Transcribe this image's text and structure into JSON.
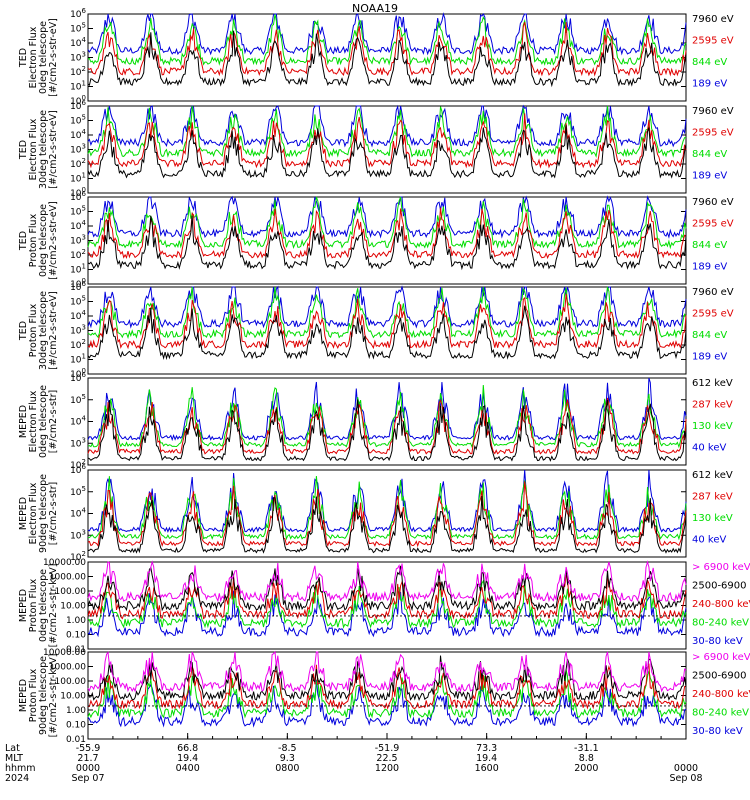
{
  "title": "NOAA19",
  "colors": {
    "black": "#000000",
    "red": "#e00000",
    "green": "#00dd00",
    "blue": "#0000dd",
    "magenta": "#ee00ee"
  },
  "chart_data": {
    "type": "line",
    "panels": [
      {
        "ylabel": [
          "TED",
          "Electron Flux",
          "0deg telescope",
          "[#/cm2-s-str-eV]"
        ],
        "yticks": [
          "10^6",
          "10^5",
          "10^4",
          "10^3",
          "10^2",
          "10^1",
          "10^0"
        ],
        "yrange": [
          0,
          6
        ],
        "legend": [
          {
            "name": "7960 eV",
            "color": "black"
          },
          {
            "name": "2595 eV",
            "color": "red"
          },
          {
            "name": "844 eV",
            "color": "green"
          },
          {
            "name": "189 eV",
            "color": "blue"
          }
        ]
      },
      {
        "ylabel": [
          "TED",
          "Electron Flux",
          "30deg telescope",
          "[#/cm2-s-str-eV]"
        ],
        "yticks": [
          "10^6",
          "10^5",
          "10^4",
          "10^3",
          "10^2",
          "10^1",
          "10^0"
        ],
        "yrange": [
          0,
          6
        ],
        "legend": [
          {
            "name": "7960 eV",
            "color": "black"
          },
          {
            "name": "2595 eV",
            "color": "red"
          },
          {
            "name": "844 eV",
            "color": "green"
          },
          {
            "name": "189 eV",
            "color": "blue"
          }
        ]
      },
      {
        "ylabel": [
          "TED",
          "Proton Flux",
          "0deg telescope",
          "[#/cm2-s-str-eV]"
        ],
        "yticks": [
          "10^6",
          "10^5",
          "10^4",
          "10^3",
          "10^2",
          "10^1",
          "10^0"
        ],
        "yrange": [
          0,
          6
        ],
        "legend": [
          {
            "name": "7960 eV",
            "color": "black"
          },
          {
            "name": "2595 eV",
            "color": "red"
          },
          {
            "name": "844 eV",
            "color": "green"
          },
          {
            "name": "189 eV",
            "color": "blue"
          }
        ]
      },
      {
        "ylabel": [
          "TED",
          "Proton Flux",
          "30deg telescope",
          "[#/cm2-s-str-eV]"
        ],
        "yticks": [
          "10^6",
          "10^5",
          "10^4",
          "10^3",
          "10^2",
          "10^1",
          "10^0"
        ],
        "yrange": [
          0,
          6
        ],
        "legend": [
          {
            "name": "7960 eV",
            "color": "black"
          },
          {
            "name": "2595 eV",
            "color": "red"
          },
          {
            "name": "844 eV",
            "color": "green"
          },
          {
            "name": "189 eV",
            "color": "blue"
          }
        ]
      },
      {
        "ylabel": [
          "MEPED",
          "Electron Flux",
          "0deg telescope",
          "[#/cm2-s-str]"
        ],
        "yticks": [
          "10^6",
          "10^5",
          "10^4",
          "10^3",
          "10^2"
        ],
        "yrange": [
          2,
          6
        ],
        "legend": [
          {
            "name": "612 keV",
            "color": "black"
          },
          {
            "name": "287 keV",
            "color": "red"
          },
          {
            "name": "130 keV",
            "color": "green"
          },
          {
            "name": "40 keV",
            "color": "blue"
          }
        ]
      },
      {
        "ylabel": [
          "MEPED",
          "Electron Flux",
          "90deg telescope",
          "[#/cm2-s-str]"
        ],
        "yticks": [
          "10^6",
          "10^5",
          "10^4",
          "10^3",
          "10^2"
        ],
        "yrange": [
          2,
          6
        ],
        "legend": [
          {
            "name": "612 keV",
            "color": "black"
          },
          {
            "name": "287 keV",
            "color": "red"
          },
          {
            "name": "130 keV",
            "color": "green"
          },
          {
            "name": "40 keV",
            "color": "blue"
          }
        ]
      },
      {
        "ylabel": [
          "MEPED",
          "Proton Flux",
          "0deg telescope",
          "[#/cm2-s-str-keV]"
        ],
        "yticks": [
          "10000.00",
          "1000.00",
          "100.00",
          "10.00",
          "1.00",
          "0.10",
          "0.01"
        ],
        "yrange": [
          -2,
          4
        ],
        "legend": [
          {
            "name": "> 6900 keV",
            "color": "magenta"
          },
          {
            "name": "2500-6900",
            "color": "black"
          },
          {
            "name": "240-800 keV",
            "color": "red"
          },
          {
            "name": "80-240 keV",
            "color": "green"
          },
          {
            "name": "30-80 keV",
            "color": "blue"
          }
        ]
      },
      {
        "ylabel": [
          "MEPED",
          "Proton Flux",
          "90deg telescope",
          "[#/cm2-s-str-keV]"
        ],
        "yticks": [
          "10000.00",
          "1000.00",
          "100.00",
          "10.00",
          "1.00",
          "0.10",
          "0.01"
        ],
        "yrange": [
          -2,
          4
        ],
        "legend": [
          {
            "name": "> 6900 keV",
            "color": "magenta"
          },
          {
            "name": "2500-6900",
            "color": "black"
          },
          {
            "name": "240-800 keV",
            "color": "red"
          },
          {
            "name": "80-240 keV",
            "color": "green"
          },
          {
            "name": "30-80 keV",
            "color": "blue"
          }
        ]
      }
    ],
    "xaxis": {
      "row_labels": [
        "Lat",
        "MLT",
        "hhmm",
        "2024"
      ],
      "ticks": [
        {
          "lat": "-55.9",
          "mlt": "21.7",
          "hhmm": "0000",
          "date": "Sep 07"
        },
        {
          "lat": "66.8",
          "mlt": "19.4",
          "hhmm": "0400",
          "date": ""
        },
        {
          "lat": "-8.5",
          "mlt": "9.3",
          "hhmm": "0800",
          "date": ""
        },
        {
          "lat": "-51.9",
          "mlt": "22.5",
          "hhmm": "1200",
          "date": ""
        },
        {
          "lat": "73.3",
          "mlt": "19.4",
          "hhmm": "1600",
          "date": ""
        },
        {
          "lat": "-31.1",
          "mlt": "8.8",
          "hhmm": "2000",
          "date": ""
        },
        {
          "lat": "",
          "mlt": "",
          "hhmm": "0000",
          "date": "Sep 08"
        }
      ]
    }
  }
}
